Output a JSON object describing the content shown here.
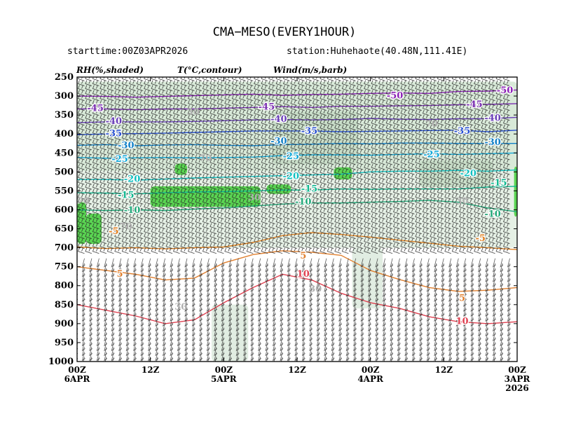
{
  "chart_data": {
    "type": "time-height cross section",
    "title": "CMA−MESO(EVERY1HOUR)",
    "starttime": "starttime:00Z03APR2026",
    "station": "station:Huhehaote(40.48N,111.41E)",
    "legend": {
      "rh": "RH(%,shaded)",
      "temp": "T(°C,contour)",
      "wind": "Wind(m/s,barb)"
    },
    "y_axis": {
      "unit": "hPa",
      "direction": "reversed",
      "range": [
        250,
        1000
      ],
      "ticks": [
        "250",
        "300",
        "350",
        "400",
        "450",
        "500",
        "550",
        "600",
        "650",
        "700",
        "750",
        "800",
        "850",
        "900",
        "950",
        "1000"
      ]
    },
    "x_axis": {
      "direction": "time decreasing left to right",
      "range_hours": [
        72,
        0
      ],
      "ticks": [
        {
          "hour": 72,
          "line1": "00Z",
          "line2": "6APR",
          "line3": ""
        },
        {
          "hour": 60,
          "line1": "12Z",
          "line2": "",
          "line3": ""
        },
        {
          "hour": 48,
          "line1": "00Z",
          "line2": "5APR",
          "line3": ""
        },
        {
          "hour": 36,
          "line1": "12Z",
          "line2": "",
          "line3": ""
        },
        {
          "hour": 24,
          "line1": "00Z",
          "line2": "4APR",
          "line3": ""
        },
        {
          "hour": 12,
          "line1": "12Z",
          "line2": "",
          "line3": ""
        },
        {
          "hour": 0,
          "line1": "00Z",
          "line2": "3APR",
          "line3": "2026"
        }
      ]
    },
    "temperature_contours": [
      {
        "label": "-50",
        "color": "#8a1fb5",
        "p": [
          300,
          301,
          303,
          301,
          299,
          297,
          295,
          298,
          296,
          295,
          293,
          292,
          293,
          288,
          287,
          284
        ]
      },
      {
        "label": "-45",
        "color": "#7a2fb0",
        "p": [
          334,
          334,
          336,
          334,
          334,
          332,
          330,
          328,
          330,
          327,
          327,
          326,
          325,
          323,
          322,
          320
        ]
      },
      {
        "label": "-40",
        "color": "#6a3fb8",
        "p": [
          370,
          368,
          368,
          368,
          367,
          365,
          363,
          362,
          363,
          362,
          359,
          361,
          362,
          360,
          360,
          356
        ]
      },
      {
        "label": "-35",
        "color": "#2850d0",
        "p": [
          402,
          400,
          399,
          398,
          396,
          394,
          392,
          392,
          392,
          394,
          393,
          392,
          391,
          390,
          394,
          390
        ]
      },
      {
        "label": "-30",
        "color": "#1080c8",
        "p": [
          430,
          428,
          431,
          429,
          428,
          430,
          431,
          428,
          427,
          425,
          426,
          424,
          424,
          425,
          425,
          425
        ]
      },
      {
        "label": "-25",
        "color": "#10a8d8",
        "p": [
          462,
          464,
          463,
          462,
          463,
          462,
          461,
          457,
          455,
          455,
          456,
          454,
          452,
          454,
          452,
          450
        ]
      },
      {
        "label": "-20",
        "color": "#10c0c0",
        "p": [
          520,
          520,
          522,
          519,
          516,
          514,
          512,
          510,
          508,
          506,
          500,
          498,
          498,
          496,
          498,
          495
        ]
      },
      {
        "label": "-15",
        "color": "#10b890",
        "p": [
          555,
          556,
          558,
          555,
          553,
          552,
          550,
          548,
          548,
          545,
          546,
          545,
          545,
          545,
          540,
          538
        ]
      },
      {
        "label": "-10",
        "color": "#20a878",
        "p": [
          600,
          602,
          600,
          602,
          598,
          595,
          590,
          585,
          582,
          582,
          580,
          578,
          575,
          580,
          595,
          605
        ]
      },
      {
        "label": "-5",
        "color": "#e08020",
        "p": [
          698,
          702,
          700,
          703,
          700,
          698,
          686,
          668,
          660,
          665,
          672,
          680,
          688,
          696,
          700,
          705
        ]
      },
      {
        "label": "5",
        "color": "#e08030",
        "p": [
          750,
          760,
          770,
          785,
          780,
          740,
          718,
          708,
          712,
          720,
          760,
          784,
          805,
          815,
          812,
          805
        ]
      },
      {
        "label": "10",
        "color": "#e04050",
        "p": [
          850,
          865,
          880,
          900,
          890,
          845,
          805,
          770,
          785,
          820,
          845,
          860,
          882,
          895,
          900,
          895
        ]
      }
    ],
    "temperature_labels": [
      {
        "text": "-50",
        "at": [
          20,
          300
        ],
        "color": "#8a1fb5"
      },
      {
        "text": "-50",
        "at": [
          2,
          286
        ],
        "color": "#8a1fb5"
      },
      {
        "text": "-45",
        "at": [
          69,
          333
        ],
        "color": "#7a2fb0"
      },
      {
        "text": "-45",
        "at": [
          41,
          329
        ],
        "color": "#7a2fb0"
      },
      {
        "text": "-45",
        "at": [
          7,
          323
        ],
        "color": "#7a2fb0"
      },
      {
        "text": "-40",
        "at": [
          66,
          367
        ],
        "color": "#6a3fb8"
      },
      {
        "text": "-40",
        "at": [
          39,
          362
        ],
        "color": "#6a3fb8"
      },
      {
        "text": "-40",
        "at": [
          4,
          359
        ],
        "color": "#6a3fb8"
      },
      {
        "text": "-35",
        "at": [
          66,
          400
        ],
        "color": "#2850d0"
      },
      {
        "text": "-35",
        "at": [
          34,
          393
        ],
        "color": "#2850d0"
      },
      {
        "text": "-35",
        "at": [
          9,
          393
        ],
        "color": "#2850d0"
      },
      {
        "text": "-30",
        "at": [
          64,
          431
        ],
        "color": "#1080c8"
      },
      {
        "text": "-30",
        "at": [
          39,
          420
        ],
        "color": "#1080c8"
      },
      {
        "text": "-30",
        "at": [
          4,
          423
        ],
        "color": "#1080c8"
      },
      {
        "text": "-25",
        "at": [
          65,
          467
        ],
        "color": "#10a8d8"
      },
      {
        "text": "-25",
        "at": [
          37,
          460
        ],
        "color": "#10a8d8"
      },
      {
        "text": "-25",
        "at": [
          14,
          455
        ],
        "color": "#10a8d8"
      },
      {
        "text": "-20",
        "at": [
          63,
          520
        ],
        "color": "#10c0c0"
      },
      {
        "text": "-20",
        "at": [
          37,
          512
        ],
        "color": "#10c0c0"
      },
      {
        "text": "-20",
        "at": [
          8,
          505
        ],
        "color": "#10c0c0"
      },
      {
        "text": "-15",
        "at": [
          64,
          562
        ],
        "color": "#10b890"
      },
      {
        "text": "-15",
        "at": [
          34,
          546
        ],
        "color": "#10b890"
      },
      {
        "text": "-15",
        "at": [
          3,
          530
        ],
        "color": "#10b890"
      },
      {
        "text": "-10",
        "at": [
          63,
          602
        ],
        "color": "#20a878"
      },
      {
        "text": "-10",
        "at": [
          35,
          580
        ],
        "color": "#20a878"
      },
      {
        "text": "-10",
        "at": [
          4,
          612
        ],
        "color": "#20a878"
      },
      {
        "text": "-5",
        "at": [
          66,
          657
        ],
        "color": "#e08020"
      },
      {
        "text": "-5",
        "at": [
          6,
          676
        ],
        "color": "#e08020"
      },
      {
        "text": "5",
        "at": [
          35,
          722
        ],
        "color": "#e08030"
      },
      {
        "text": "5",
        "at": [
          65,
          770
        ],
        "color": "#e08030"
      },
      {
        "text": "5",
        "at": [
          9,
          834
        ],
        "color": "#e08030"
      },
      {
        "text": "10",
        "at": [
          35,
          770
        ],
        "color": "#e04050"
      },
      {
        "text": "10",
        "at": [
          9,
          895
        ],
        "color": "#e04050"
      }
    ],
    "rh_labels": [
      {
        "text": "30",
        "at": [
          53,
          343
        ]
      },
      {
        "text": "70",
        "at": [
          51,
          465
        ]
      },
      {
        "text": "70",
        "at": [
          71,
          578
        ]
      },
      {
        "text": "70",
        "at": [
          64,
          645
        ]
      },
      {
        "text": "30",
        "at": [
          43,
          569
        ]
      },
      {
        "text": "30",
        "at": [
          55,
          857
        ]
      },
      {
        "text": "30",
        "at": [
          9,
          578
        ]
      },
      {
        "text": "70",
        "at": [
          14,
          375
        ]
      },
      {
        "text": "30",
        "at": [
          33,
          810
        ]
      }
    ],
    "rh_regions": [
      {
        "level": "70",
        "color": "#d6e8d6",
        "hours": [
          72,
          0
        ],
        "p": [
          262,
          498
        ]
      },
      {
        "level": "30",
        "color": "#e4efe4",
        "hours": [
          72,
          0
        ],
        "p": [
          498,
          700
        ]
      },
      {
        "level": "90",
        "color": "#52d24a",
        "hours": [
          72,
          70.5
        ],
        "p": [
          580,
          690
        ]
      },
      {
        "level": "90",
        "color": "#52d24a",
        "hours": [
          70.5,
          68
        ],
        "p": [
          610,
          690
        ]
      },
      {
        "level": "90",
        "color": "#52d24a",
        "hours": [
          60,
          42
        ],
        "p": [
          538,
          592
        ]
      },
      {
        "level": "90",
        "color": "#52d24a",
        "hours": [
          56,
          54
        ],
        "p": [
          478,
          508
        ]
      },
      {
        "level": "90",
        "color": "#52d24a",
        "hours": [
          30,
          27
        ],
        "p": [
          488,
          520
        ]
      },
      {
        "level": "90",
        "color": "#52d24a",
        "hours": [
          41,
          37
        ],
        "p": [
          533,
          558
        ]
      },
      {
        "level": "90",
        "color": "#52d24a",
        "hours": [
          0.5,
          0
        ],
        "p": [
          486,
          618
        ]
      },
      {
        "level": "70",
        "color": "#c7dcc7",
        "hours": [
          40,
          26
        ],
        "p": [
          340,
          480
        ]
      },
      {
        "level": "70",
        "color": "#c7dcc7",
        "hours": [
          16,
          4
        ],
        "p": [
          470,
          540
        ]
      },
      {
        "level": "50",
        "color": "#dfece0",
        "hours": [
          50,
          44
        ],
        "p": [
          850,
          1000
        ]
      },
      {
        "level": "50",
        "color": "#dfece0",
        "hours": [
          27,
          22
        ],
        "p": [
          700,
          860
        ]
      }
    ],
    "wind_barbs": "dense barbs at every hour and every ~12 hPa level"
  }
}
